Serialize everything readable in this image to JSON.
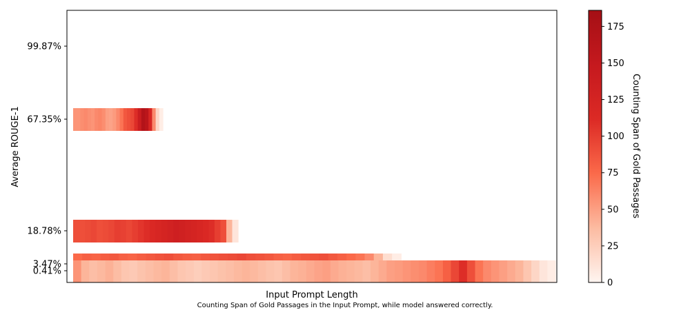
{
  "chart_data": {
    "type": "heatmap",
    "xlabel": "Input Prompt Length",
    "ylabel": "Average ROUGE-1",
    "caption": "Counting Span of Gold Passages in the Input Prompt, while model answered correctly.",
    "y_ticks": [
      {
        "label": "99.87%",
        "value": 99.87
      },
      {
        "label": "67.35%",
        "value": 67.35
      },
      {
        "label": "18.78%",
        "value": 18.78
      },
      {
        "label": "3.47%",
        "value": 3.47
      },
      {
        "label": "0.41%",
        "value": 0.41
      }
    ],
    "rows": [
      {
        "y_label": "67.35%",
        "length_fraction": 0.186,
        "span_profile": [
          55,
          55,
          58,
          60,
          57,
          55,
          60,
          62,
          58,
          50,
          48,
          52,
          60,
          70,
          85,
          90,
          95,
          110,
          140,
          170,
          160,
          120,
          60,
          20,
          5
        ]
      },
      {
        "y_label": "18.78%",
        "length_fraction": 0.342,
        "span_profile": [
          90,
          90,
          92,
          95,
          90,
          92,
          95,
          100,
          98,
          95,
          100,
          105,
          110,
          115,
          120,
          125,
          130,
          135,
          132,
          128,
          125,
          120,
          115,
          110,
          100,
          90,
          40,
          10
        ]
      },
      {
        "y_label": "3.47%",
        "length_fraction": 0.68,
        "span_profile": [
          75,
          80,
          78,
          82,
          85,
          80,
          78,
          82,
          85,
          88,
          90,
          85,
          82,
          80,
          85,
          88,
          90,
          92,
          95,
          90,
          88,
          85,
          80,
          78,
          82,
          85,
          88,
          90,
          85,
          80,
          75,
          70,
          60,
          40,
          15,
          5
        ]
      },
      {
        "y_label": "0.41%",
        "length_fraction": 1.0,
        "span_profile": [
          55,
          40,
          35,
          38,
          42,
          36,
          30,
          28,
          32,
          35,
          38,
          40,
          35,
          30,
          28,
          25,
          28,
          30,
          33,
          35,
          38,
          40,
          38,
          35,
          32,
          30,
          35,
          40,
          42,
          45,
          48,
          50,
          45,
          42,
          40,
          38,
          35,
          40,
          45,
          50,
          52,
          55,
          58,
          60,
          65,
          70,
          80,
          95,
          110,
          90,
          70,
          60,
          55,
          50,
          45,
          40,
          30,
          20,
          10,
          5
        ]
      }
    ],
    "colorbar": {
      "label": "Counting Span of Gold Passages",
      "min": 0,
      "max": 186,
      "ticks": [
        0,
        25,
        50,
        75,
        100,
        125,
        150,
        175
      ],
      "colors": [
        "#fff5f0",
        "#fcbba1",
        "#fb6a4a",
        "#dc2a25",
        "#c5191e",
        "#a50f15"
      ]
    }
  }
}
